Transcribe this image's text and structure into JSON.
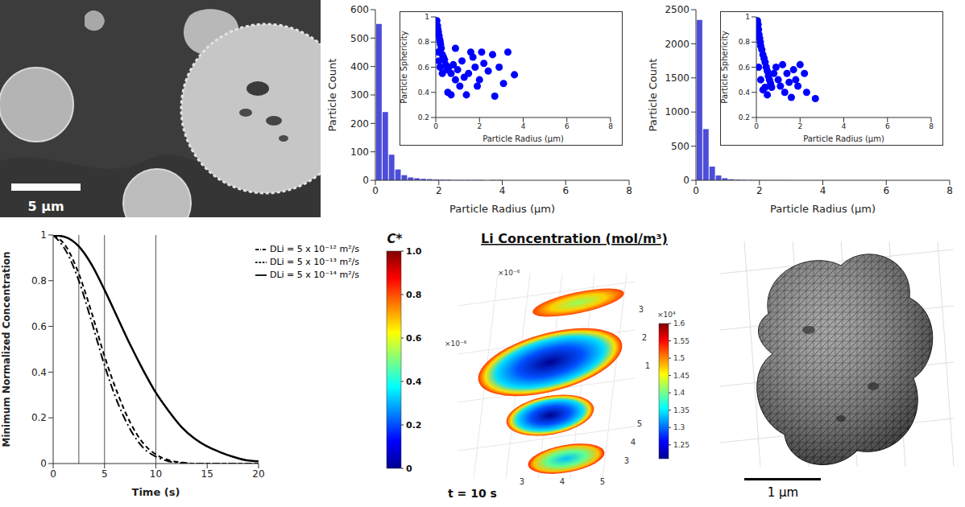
{
  "chart_data": [
    {
      "type": "histogram",
      "x_label": "Particle Radius (μm)",
      "y_label": "Particle Count",
      "bins": [
        0,
        0.2,
        0.4,
        0.6,
        0.8,
        1,
        1.2,
        1.4,
        1.6,
        1.8,
        2,
        2.2,
        2.4,
        2.6,
        2.8,
        3,
        3.2,
        3.4,
        3.6,
        3.8,
        4
      ],
      "values": [
        550,
        240,
        90,
        38,
        18,
        10,
        7,
        5,
        4,
        3,
        2,
        2,
        1,
        1,
        1,
        1,
        1,
        0,
        1,
        1
      ],
      "color": "#4d4dd9",
      "xlim": [
        0,
        8
      ],
      "xticks": [
        0,
        2,
        4,
        6,
        8
      ],
      "ylim": [
        0,
        600
      ],
      "yticks": [
        0,
        100,
        200,
        300,
        400,
        500,
        600
      ],
      "inset": {
        "type": "scatter",
        "x_label": "Particle Radius (μm)",
        "y_label": "Particle Sphericity",
        "x": [
          0.05,
          0.08,
          0.1,
          0.12,
          0.15,
          0.18,
          0.2,
          0.22,
          0.25,
          0.1,
          0.3,
          0.35,
          0.15,
          0.4,
          0.45,
          0.2,
          0.5,
          0.3,
          0.6,
          0.7,
          0.8,
          0.9,
          1.0,
          1.1,
          1.2,
          1.3,
          0.55,
          0.7,
          1.5,
          1.6,
          1.7,
          1.8,
          1.9,
          2.0,
          2.1,
          2.2,
          2.4,
          2.6,
          2.7,
          2.9,
          3.1,
          3.3,
          3.6,
          1.4,
          0.9
        ],
        "values": [
          0.97,
          0.93,
          0.9,
          0.88,
          0.85,
          0.82,
          0.8,
          0.78,
          0.75,
          0.72,
          0.7,
          0.68,
          0.65,
          0.66,
          0.62,
          0.6,
          0.58,
          0.55,
          0.6,
          0.55,
          0.62,
          0.5,
          0.58,
          0.45,
          0.65,
          0.52,
          0.4,
          0.38,
          0.55,
          0.72,
          0.68,
          0.6,
          0.45,
          0.5,
          0.72,
          0.63,
          0.57,
          0.7,
          0.37,
          0.6,
          0.47,
          0.72,
          0.54,
          0.38,
          0.75
        ],
        "color": "#0000ff",
        "marker": "circle",
        "xlim": [
          0,
          8
        ],
        "xticks": [
          0,
          2,
          4,
          6,
          8
        ],
        "ylim": [
          0.2,
          1
        ],
        "yticks": [
          0.2,
          0.4,
          0.6,
          0.8,
          1
        ]
      }
    },
    {
      "type": "histogram",
      "x_label": "Particle Radius (μm)",
      "y_label": "Particle Count",
      "bins": [
        0,
        0.2,
        0.4,
        0.6,
        0.8,
        1,
        1.2,
        1.4,
        1.6,
        1.8,
        2,
        2.2,
        2.4,
        2.6,
        2.8,
        3
      ],
      "values": [
        2350,
        750,
        200,
        70,
        30,
        15,
        9,
        6,
        4,
        3,
        2,
        1,
        1,
        1,
        1
      ],
      "color": "#4d4dd9",
      "xlim": [
        0,
        8
      ],
      "xticks": [
        0,
        2,
        4,
        6,
        8
      ],
      "ylim": [
        0,
        2500
      ],
      "yticks": [
        0,
        500,
        1000,
        1500,
        2000,
        2500
      ],
      "inset": {
        "type": "scatter",
        "x_label": "Particle Radius (μm)",
        "y_label": "Particle Sphericity",
        "x": [
          0.05,
          0.08,
          0.1,
          0.12,
          0.15,
          0.18,
          0.2,
          0.25,
          0.3,
          0.35,
          0.4,
          0.45,
          0.5,
          0.55,
          0.6,
          0.65,
          0.7,
          0.3,
          0.5,
          0.8,
          0.9,
          1.0,
          1.1,
          1.2,
          1.3,
          1.4,
          1.5,
          1.6,
          1.7,
          1.8,
          1.9,
          2.0,
          2.2,
          2.3,
          2.7,
          0.2,
          0.4,
          0.1
        ],
        "values": [
          0.97,
          0.94,
          0.9,
          0.86,
          0.83,
          0.8,
          0.77,
          0.74,
          0.7,
          0.67,
          0.64,
          0.6,
          0.57,
          0.53,
          0.5,
          0.47,
          0.44,
          0.42,
          0.38,
          0.55,
          0.6,
          0.5,
          0.45,
          0.62,
          0.4,
          0.55,
          0.48,
          0.36,
          0.58,
          0.5,
          0.45,
          0.62,
          0.55,
          0.4,
          0.35,
          0.5,
          0.44,
          0.6
        ],
        "color": "#0000ff",
        "marker": "circle",
        "xlim": [
          0,
          8
        ],
        "xticks": [
          0,
          2,
          4,
          6,
          8
        ],
        "ylim": [
          0.2,
          1
        ],
        "yticks": [
          0.2,
          0.4,
          0.6,
          0.8,
          1
        ]
      }
    },
    {
      "type": "line",
      "x_label": "Time (s)",
      "y_label": "Minimum Normalized Concentration",
      "x": [
        0,
        1.25,
        2.5,
        3.75,
        5,
        6.25,
        7.5,
        8.75,
        10,
        11.25,
        12.5,
        13.75,
        15,
        16.25,
        17.5,
        18.75,
        20
      ],
      "series": [
        {
          "name": "DLi = 5 x 10⁻¹⁴ m²/s",
          "color": "#000000",
          "line_style": "solid",
          "values": [
            1,
            0.99,
            0.95,
            0.87,
            0.76,
            0.64,
            0.52,
            0.41,
            0.31,
            0.23,
            0.16,
            0.11,
            0.075,
            0.05,
            0.03,
            0.015,
            0.01
          ]
        },
        {
          "name": "DLi = 5 x 10⁻¹³ m²/s",
          "color": "#000000",
          "line_style": "dashed",
          "values": [
            1,
            0.95,
            0.83,
            0.66,
            0.47,
            0.31,
            0.18,
            0.09,
            0.04,
            0.015,
            0.005,
            0,
            0,
            0,
            0,
            0,
            0
          ]
        },
        {
          "name": "DLi = 5 x 10⁻¹² m²/s",
          "color": "#000000",
          "line_style": "dashdot",
          "values": [
            1,
            0.93,
            0.8,
            0.62,
            0.43,
            0.27,
            0.15,
            0.07,
            0.03,
            0.01,
            0.003,
            0,
            0,
            0,
            0,
            0,
            0
          ]
        }
      ],
      "xlim": [
        0,
        20
      ],
      "xticks": [
        0,
        5,
        10,
        15,
        20
      ],
      "ylim": [
        0,
        1
      ],
      "yticks": [
        0,
        0.2,
        0.4,
        0.6,
        0.8,
        1
      ],
      "legend": "top-right",
      "vlines": [
        2.5,
        5,
        10
      ],
      "colorbar": {
        "title": "C*",
        "range": [
          0,
          1
        ],
        "ticks": [
          0,
          0.2,
          0.4,
          0.6,
          0.8,
          {
            "value": 1,
            "label": "1.0"
          }
        ]
      }
    }
  ],
  "images": {
    "sem": {
      "scale_bar": "5 µm"
    },
    "li_concentration": {
      "title": "Li Concentration (mol/m³)",
      "time_label": "t = 10 s",
      "axes": [
        {
          "exponent": "×10⁻⁶",
          "ticks": [
            3,
            2,
            1
          ]
        },
        {
          "exponent": "×10⁻⁶",
          "ticks": [
            5,
            4,
            3
          ]
        },
        {
          "ticks": [
            3,
            4,
            5
          ]
        }
      ],
      "colorbar": {
        "exponent": "×10⁴",
        "range": [
          1.21,
          1.6
        ],
        "ticks": [
          1.25,
          1.3,
          1.35,
          1.4,
          1.45,
          1.5,
          1.55,
          1.6
        ]
      }
    },
    "mesh": {
      "scale_bar": "1 µm"
    }
  }
}
